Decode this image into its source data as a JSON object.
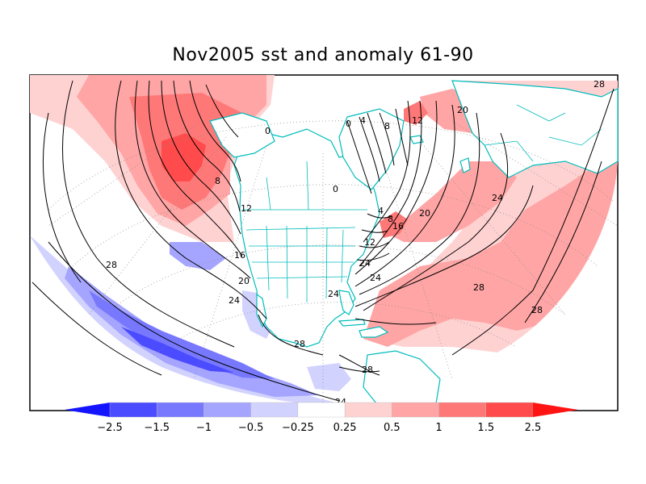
{
  "title": "Nov2005 sst and anomaly 61-90",
  "colorbar": {
    "levels": [
      "-2.5",
      "-1.5",
      "-1",
      "-0.5",
      "-0.25",
      "0.25",
      "0.5",
      "1",
      "1.5",
      "2.5"
    ],
    "colors": [
      "#1414ff",
      "#4b4bff",
      "#7878ff",
      "#a5a5ff",
      "#d2d2ff",
      "#ffffff",
      "#ffd2d2",
      "#ffa5a5",
      "#ff7878",
      "#ff4b4b",
      "#ff1414"
    ]
  },
  "contour_labels": [
    "0",
    "4",
    "8",
    "12",
    "16",
    "20",
    "24",
    "28"
  ],
  "map_labels": [
    {
      "text": "28",
      "id": "ne-pacific-28"
    },
    {
      "text": "8",
      "id": "n-pacific-8"
    },
    {
      "text": "12",
      "id": "n-pacific-12"
    },
    {
      "text": "16",
      "id": "n-pacific-16"
    },
    {
      "text": "20",
      "id": "n-pacific-20"
    },
    {
      "text": "24",
      "id": "n-pacific-24"
    },
    {
      "text": "28",
      "id": "e-pacific-28"
    },
    {
      "text": "0",
      "id": "bering-0"
    },
    {
      "text": "0",
      "id": "hudson-0"
    },
    {
      "text": "0",
      "id": "greenland-0"
    },
    {
      "text": "4",
      "id": "greenland-4"
    },
    {
      "text": "8",
      "id": "greenland-8"
    },
    {
      "text": "12",
      "id": "greenland-12"
    },
    {
      "text": "20",
      "id": "norway-20"
    },
    {
      "text": "4",
      "id": "labrador-4"
    },
    {
      "text": "8",
      "id": "newfoundland-8"
    },
    {
      "text": "16",
      "id": "gulfstream-16"
    },
    {
      "text": "12",
      "id": "ne-coast-12"
    },
    {
      "text": "20",
      "id": "atlantic-20"
    },
    {
      "text": "24",
      "id": "atlantic-24"
    },
    {
      "text": "24",
      "id": "gulf-24"
    },
    {
      "text": "24",
      "id": "se-coast-24"
    },
    {
      "text": "28",
      "id": "atlantic-28"
    },
    {
      "text": "28",
      "id": "caribbean-28"
    },
    {
      "text": "28",
      "id": "e-atlantic-28"
    },
    {
      "text": "24",
      "id": "ne-atlantic-24"
    },
    {
      "text": "28",
      "id": "far-east-28"
    },
    {
      "text": "24",
      "id": "s-pacific-24"
    }
  ]
}
